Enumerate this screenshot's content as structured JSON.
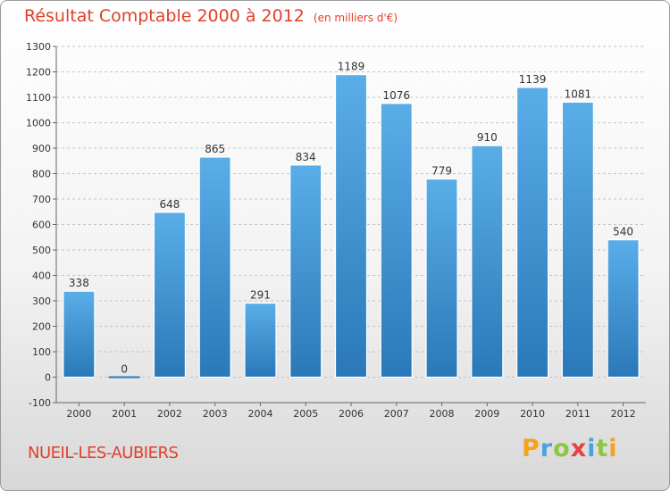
{
  "title": "Résultat Comptable 2000 à 2012",
  "subtitle": "(en milliers d'€)",
  "commune": "NUEIL-LES-AUBIERS",
  "logo": {
    "letters": [
      "P",
      "r",
      "o",
      "x",
      "i",
      "t",
      "i"
    ],
    "colors": [
      "#f7a21b",
      "#4aa3df",
      "#8dc63f",
      "#e8403a",
      "#4aa3df",
      "#8dc63f",
      "#f7a21b"
    ]
  },
  "colors": {
    "bar_light": "#5aaee8",
    "bar_dark": "#2a78b8",
    "title": "#e0402a"
  },
  "chart_data": {
    "type": "bar",
    "title": "Résultat Comptable 2000 à 2012",
    "ylabel": "",
    "xlabel": "",
    "categories": [
      "2000",
      "2001",
      "2002",
      "2003",
      "2004",
      "2005",
      "2006",
      "2007",
      "2008",
      "2009",
      "2010",
      "2011",
      "2012"
    ],
    "values": [
      338,
      0,
      648,
      865,
      291,
      834,
      1189,
      1076,
      779,
      910,
      1139,
      1081,
      540
    ],
    "ylim": [
      -100,
      1300
    ],
    "yticks": [
      -100,
      0,
      100,
      200,
      300,
      400,
      500,
      600,
      700,
      800,
      900,
      1000,
      1100,
      1200,
      1300
    ],
    "grid": true
  }
}
